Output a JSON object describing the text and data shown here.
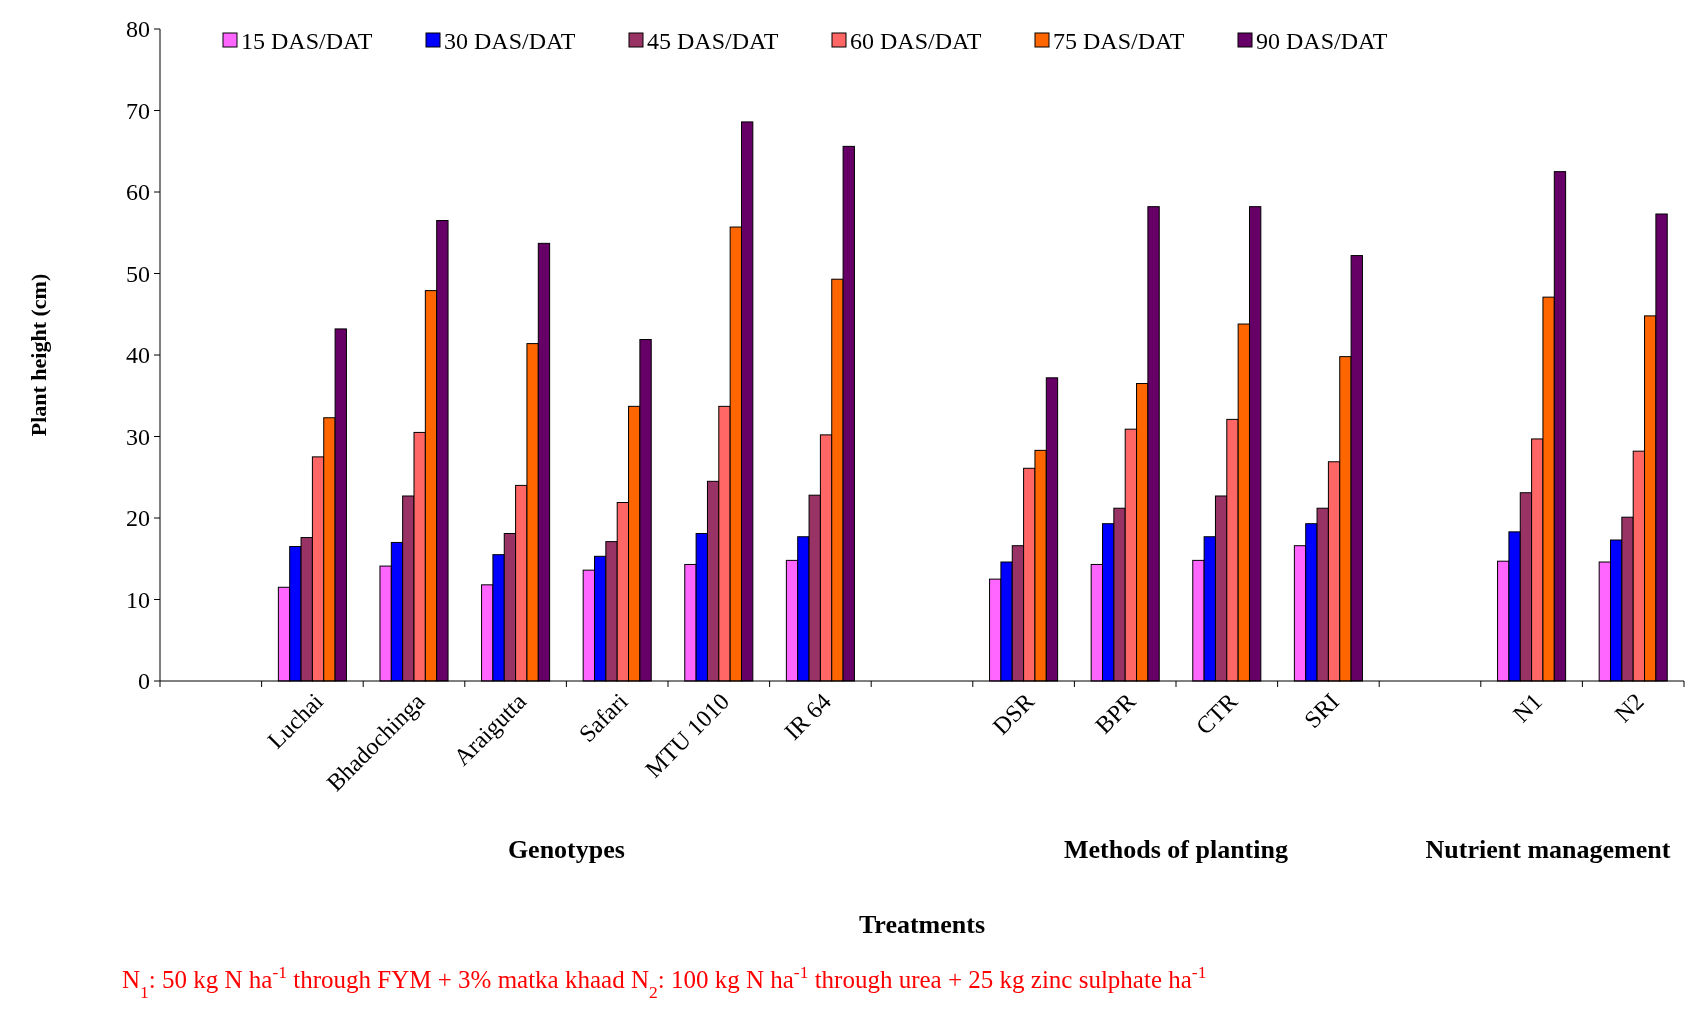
{
  "chart_data": {
    "type": "bar",
    "ylabel": "Plant height (cm)",
    "xlabel": "Treatments",
    "categories": [
      null,
      "Luchai",
      "Bhadochinga",
      "Araigutta",
      "Safari",
      "MTU 1010",
      "IR 64",
      null,
      "DSR",
      "BPR",
      "CTR",
      "SRI",
      null,
      "N1",
      "N2"
    ],
    "series": [
      {
        "name": "15 DAS/DAT",
        "color": "#ff66ff",
        "values": [
          null,
          11.5,
          14.1,
          11.8,
          13.6,
          14.3,
          14.8,
          null,
          12.5,
          14.3,
          14.8,
          16.6,
          null,
          14.7,
          14.6
        ]
      },
      {
        "name": "30 DAS/DAT",
        "color": "#0000ff",
        "values": [
          null,
          16.5,
          17.0,
          15.5,
          15.3,
          18.1,
          17.7,
          null,
          14.6,
          19.3,
          17.7,
          19.3,
          null,
          18.3,
          17.3
        ]
      },
      {
        "name": "45 DAS/DAT",
        "color": "#993366",
        "values": [
          null,
          17.6,
          22.7,
          18.1,
          17.1,
          24.5,
          22.8,
          null,
          16.6,
          21.2,
          22.7,
          21.2,
          null,
          23.1,
          20.1
        ]
      },
      {
        "name": "60 DAS/DAT",
        "color": "#ff6666",
        "values": [
          null,
          27.5,
          30.5,
          24.0,
          21.9,
          33.7,
          30.2,
          null,
          26.1,
          30.9,
          32.1,
          26.9,
          null,
          29.7,
          28.2
        ]
      },
      {
        "name": "75 DAS/DAT",
        "color": "#ff6600",
        "values": [
          null,
          32.3,
          47.9,
          41.4,
          33.7,
          55.7,
          49.3,
          null,
          28.3,
          36.5,
          43.8,
          39.8,
          null,
          47.1,
          44.8
        ]
      },
      {
        "name": "90 DAS/DAT",
        "color": "#660066",
        "values": [
          null,
          43.2,
          56.5,
          53.7,
          41.9,
          68.6,
          65.6,
          null,
          37.2,
          58.2,
          58.2,
          52.2,
          null,
          62.5,
          57.3
        ]
      }
    ],
    "ylim": [
      0,
      80
    ],
    "yticks": [
      0,
      10,
      20,
      30,
      40,
      50,
      60,
      70,
      80
    ],
    "grid": false,
    "legend": "top",
    "annotations": [
      "Genotypes",
      "Methods of planting",
      "Nutrient management",
      "N$_{1}$: 50 kg N ha$^{-1}$ through FYM + 3% matka khaad N$_{2}$: 100 kg N ha$^{-1}$ through urea + 25 kg zinc sulphate ha$^{-1}$"
    ]
  }
}
